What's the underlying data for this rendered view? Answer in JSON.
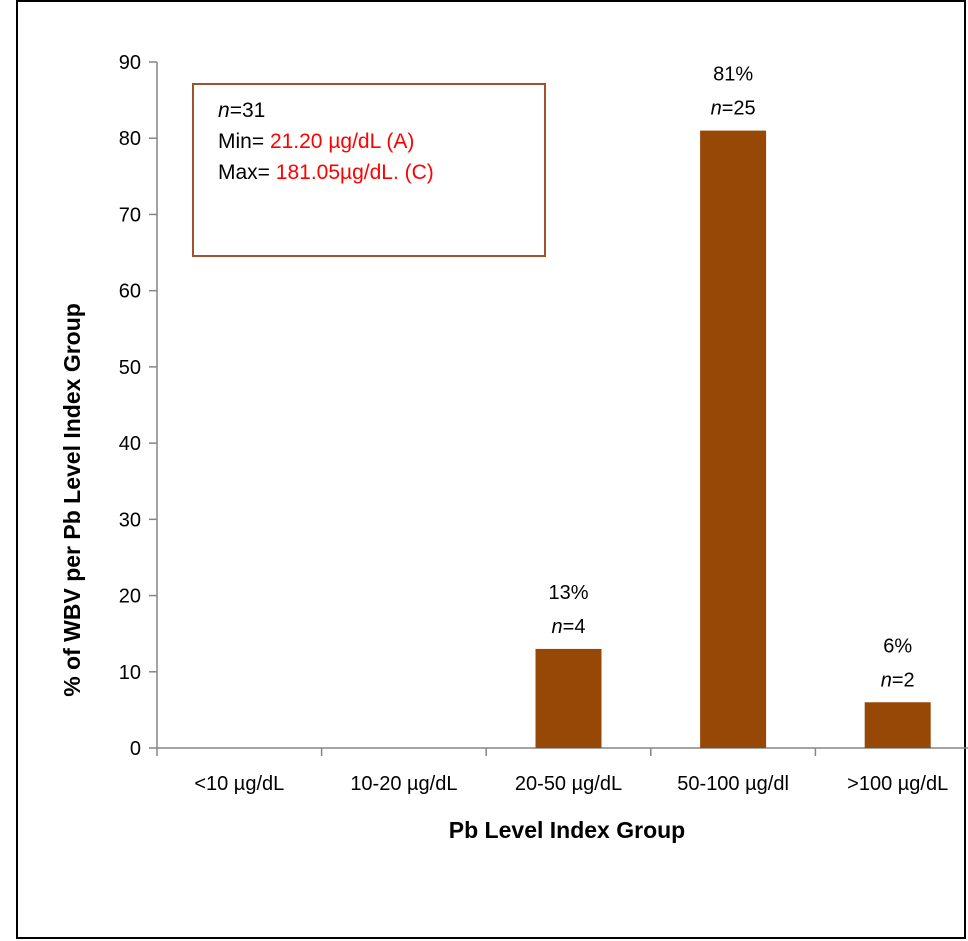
{
  "chart_data": {
    "type": "bar",
    "categories": [
      "<10  µg/dL",
      "10-20 µg/dL",
      "20-50 µg/dL",
      "50-100 µg/dl",
      ">100 µg/dL"
    ],
    "values": [
      0,
      0,
      13,
      81,
      6
    ],
    "data_labels": [
      null,
      null,
      {
        "percent": "13%",
        "n_prefix": "n",
        "n_suffix": "=4"
      },
      {
        "percent": "81%",
        "n_prefix": "n",
        "n_suffix": "=25"
      },
      {
        "percent": "6%",
        "n_prefix": "n",
        "n_suffix": "=2"
      }
    ],
    "xlabel": "Pb Level Index Group",
    "ylabel": "% of WBV per Pb Level Index Group",
    "ylim": [
      0,
      90
    ],
    "yticks": [
      0,
      10,
      20,
      30,
      40,
      50,
      60,
      70,
      80,
      90
    ],
    "bar_color": "#974706",
    "grid": false
  },
  "info_box": {
    "n_prefix": "n",
    "n_suffix": "=31",
    "min_label": "Min= ",
    "min_value": "21.20 µg/dL (A)",
    "max_label": "Max= ",
    "max_value": "181.05µg/dL. (C)",
    "value_color": "#ff0000",
    "border_color": "#a0522d"
  }
}
